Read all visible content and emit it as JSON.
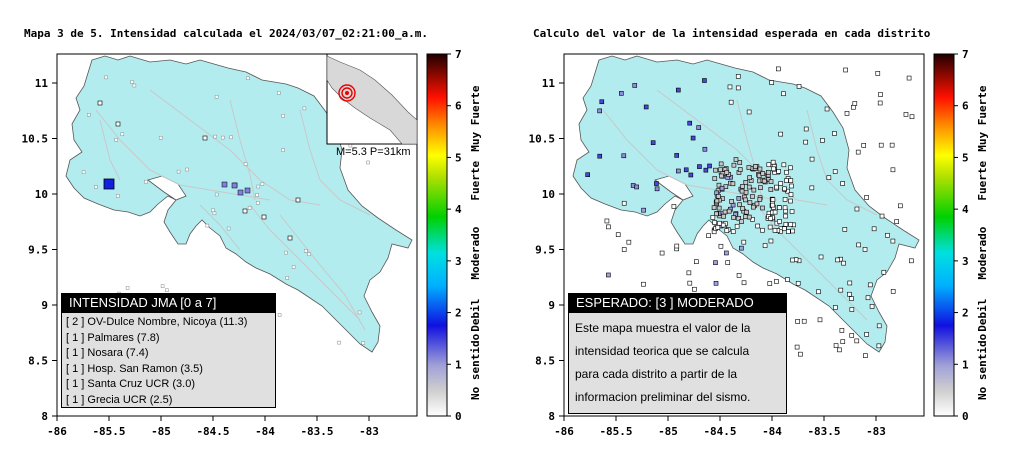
{
  "left_map": {
    "title": "Mapa 3 de 5. Intensidad calculada el 2024/03/07_02:21:00_a.m.",
    "legend_title": "INTENSIDAD JMA [0 a 7]",
    "stations": [
      {
        "level": "[ 2 ]",
        "name": "OV-Dulce Nombre, Nicoya (11.3)"
      },
      {
        "level": "[ 1 ]",
        "name": "Palmares (7.8)"
      },
      {
        "level": "[ 1 ]",
        "name": "Nosara (7.4)"
      },
      {
        "level": "[ 1 ]",
        "name": "Hosp. San Ramon (3.5)"
      },
      {
        "level": "[ 1 ]",
        "name": "Santa Cruz UCR (3.0)"
      },
      {
        "level": "[ 1 ]",
        "name": "Grecia UCR (2.5)"
      }
    ],
    "inset_label": "M=5.3 P=31km",
    "colorbar_labels": [
      "No sentido",
      "Debil",
      "Moderado",
      "Fuerte",
      "Muy Fuerte"
    ]
  },
  "right_map": {
    "title": "Calculo del valor de la intensidad esperada en cada distrito",
    "header": "ESPERADO: [3 ] MODERADO",
    "description": [
      "Este mapa muestra el valor de la",
      "intensidad teorica que se calcula",
      "para cada distrito a partir de la",
      "informacion preliminar del sismo."
    ],
    "colorbar_labels": [
      "No sentido",
      "Debil",
      "Moderado",
      "Fuerte",
      "Muy Fuerte"
    ]
  },
  "axes": {
    "x_ticks": [
      "-86",
      "-85.5",
      "-85",
      "-84.5",
      "-84",
      "-83.5",
      "-83"
    ],
    "y_ticks": [
      "8",
      "8.5",
      "9",
      "9.5",
      "10",
      "10.5",
      "11"
    ],
    "colorbar_ticks": [
      "0",
      "1",
      "2",
      "3",
      "4",
      "5",
      "6",
      "7"
    ]
  },
  "colors": {
    "land": "#b3ecee",
    "roads": "#c8c8c8",
    "panel_bg": "#e0e0e0"
  }
}
